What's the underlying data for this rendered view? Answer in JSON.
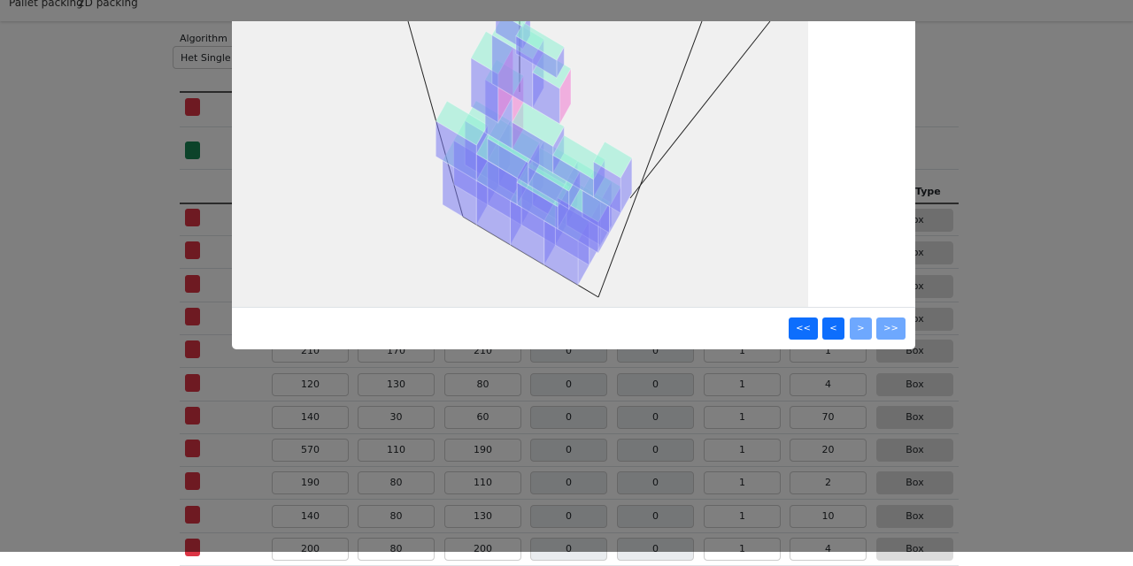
{
  "nav": {
    "items": [
      "Pallet packing",
      "2D packing"
    ]
  },
  "algorithm": {
    "label": "Algorithm",
    "value": "Het Single layer"
  },
  "colors": {
    "red": "#a52834",
    "green": "#0f6b3a",
    "primary": "#0d6efd",
    "primary_disabled": "#6ea8fe",
    "box_top": "#8ff0d4",
    "box_side": "#7c7cf2",
    "box_pink": "#f07ad2"
  },
  "table": {
    "type_header": "Type",
    "hidden_rows": [
      {
        "type": "Box"
      },
      {
        "type": "Box"
      },
      {
        "type": "Box"
      },
      {
        "type": "Box"
      }
    ],
    "rows": [
      [
        "210",
        "170",
        "210",
        "0",
        "0",
        "1",
        "1",
        "Box"
      ],
      [
        "120",
        "130",
        "80",
        "0",
        "0",
        "1",
        "4",
        "Box"
      ],
      [
        "140",
        "30",
        "60",
        "0",
        "0",
        "1",
        "70",
        "Box"
      ],
      [
        "570",
        "110",
        "190",
        "0",
        "0",
        "1",
        "20",
        "Box"
      ],
      [
        "190",
        "80",
        "110",
        "0",
        "0",
        "1",
        "2",
        "Box"
      ],
      [
        "140",
        "80",
        "130",
        "0",
        "0",
        "1",
        "10",
        "Box"
      ],
      [
        "200",
        "80",
        "200",
        "0",
        "0",
        "1",
        "4",
        "Box"
      ]
    ]
  },
  "modal": {
    "buttons": {
      "first": "<<",
      "prev": "<",
      "next": ">",
      "last": ">>"
    },
    "next_enabled": false,
    "last_enabled": false
  }
}
